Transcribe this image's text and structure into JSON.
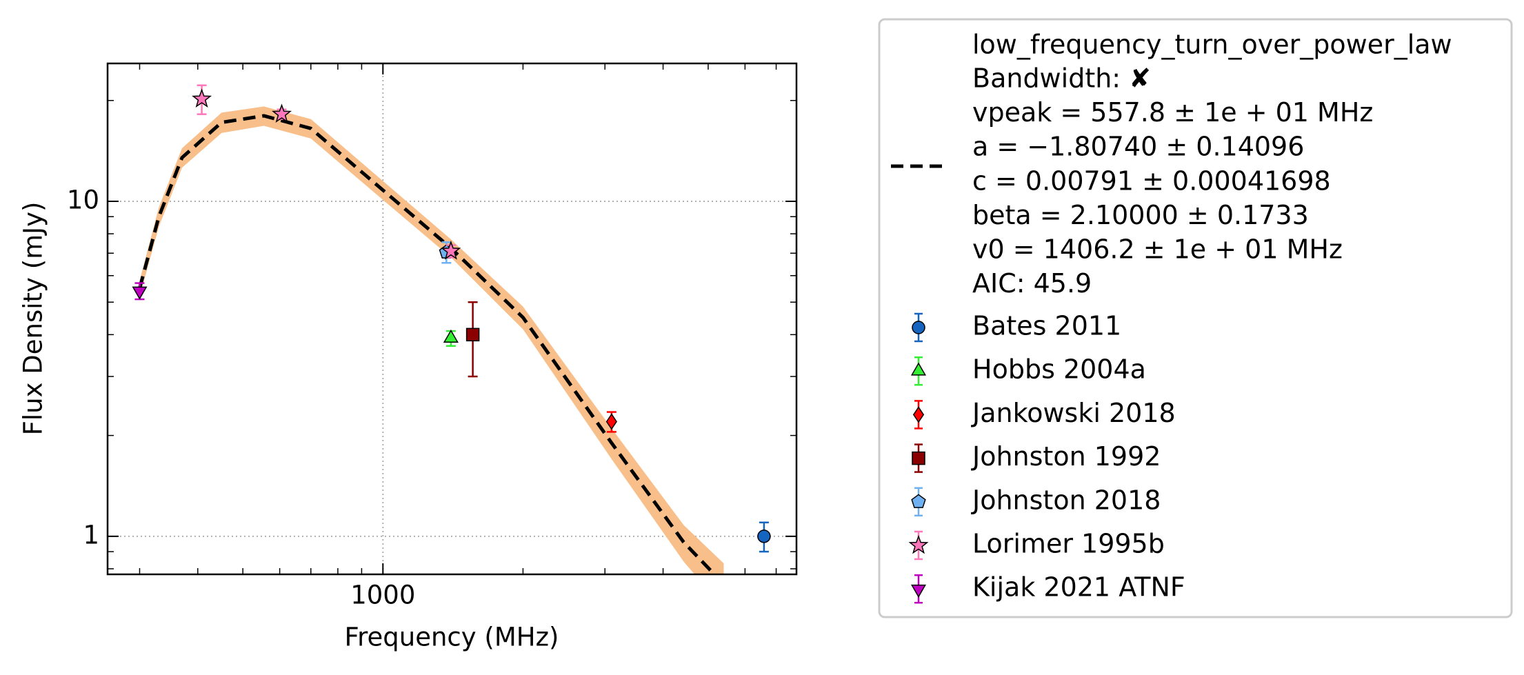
{
  "chart_data": {
    "type": "scatter",
    "x_label": "Frequency (MHz)",
    "y_label": "Flux Density (mJy)",
    "log_x": true,
    "log_y": true,
    "grid": true,
    "xlim": [
      256,
      7740
    ],
    "ylim": [
      0.77,
      25.8
    ],
    "xticks": [
      1000
    ],
    "yticks": [
      1,
      10
    ],
    "legend_position": "outside right",
    "fit": {
      "name": "low_frequency_turn_over_power_law",
      "label_lines": [
        "Bandwidth: ✘",
        "vpeak = 557.8 ± 1e + 01 MHz",
        "a = −1.80740 ± 0.14096",
        "c = 0.00791 ± 0.00041698",
        "beta = 2.10000 ± 0.1733",
        "v0 = 1406.2 ± 1e + 01 MHz",
        "AIC: 45.9"
      ],
      "color": "#000000",
      "band_color": "#f9bf8a",
      "x": [
        300,
        330,
        370,
        450,
        555,
        700,
        1000,
        1400,
        2000,
        3100,
        4430,
        5400
      ],
      "values": [
        5.5,
        9.0,
        13.5,
        17.2,
        18.0,
        16.5,
        10.8,
        7.25,
        4.5,
        1.9,
        0.96,
        0.72
      ],
      "lower": [
        5.2,
        8.4,
        12.6,
        16.0,
        16.8,
        15.4,
        10.1,
        6.8,
        4.15,
        1.7,
        0.84,
        0.61
      ],
      "upper": [
        5.8,
        9.6,
        14.4,
        18.4,
        19.2,
        17.6,
        11.5,
        7.7,
        4.85,
        2.1,
        1.08,
        0.83
      ]
    },
    "series": [
      {
        "name": "Bates 2011",
        "color": "#1565c0",
        "marker": "circle",
        "x": [
          6591
        ],
        "values": [
          1.0
        ],
        "errors": [
          0.1
        ]
      },
      {
        "name": "Hobbs 2004a",
        "color": "#33ee33",
        "marker": "triangle-up",
        "x": [
          1400
        ],
        "values": [
          3.9
        ],
        "errors": [
          0.2
        ]
      },
      {
        "name": "Jankowski 2018",
        "color": "#ff0000",
        "marker": "diamond",
        "x": [
          3100
        ],
        "values": [
          2.2
        ],
        "errors": [
          0.15
        ]
      },
      {
        "name": "Johnston 1992",
        "color": "#8b0000",
        "marker": "square",
        "x": [
          1560
        ],
        "values": [
          4.0
        ],
        "errors": [
          1.0
        ]
      },
      {
        "name": "Johnston 2018",
        "color": "#6fb0f0",
        "marker": "pentagon",
        "x": [
          1369
        ],
        "values": [
          7.05
        ],
        "errors": [
          0.5
        ]
      },
      {
        "name": "Lorimer 1995b",
        "color": "#ff77bb",
        "marker": "star",
        "x": [
          408,
          606,
          1400
        ],
        "values": [
          20.2,
          18.2,
          7.1
        ],
        "errors": [
          2.0,
          0.6,
          0.3
        ]
      },
      {
        "name": "Kijak 2021 ATNF",
        "color": "#c000c0",
        "marker": "triangle-down",
        "x": [
          300
        ],
        "values": [
          5.4
        ],
        "errors": [
          0.3
        ]
      }
    ]
  }
}
